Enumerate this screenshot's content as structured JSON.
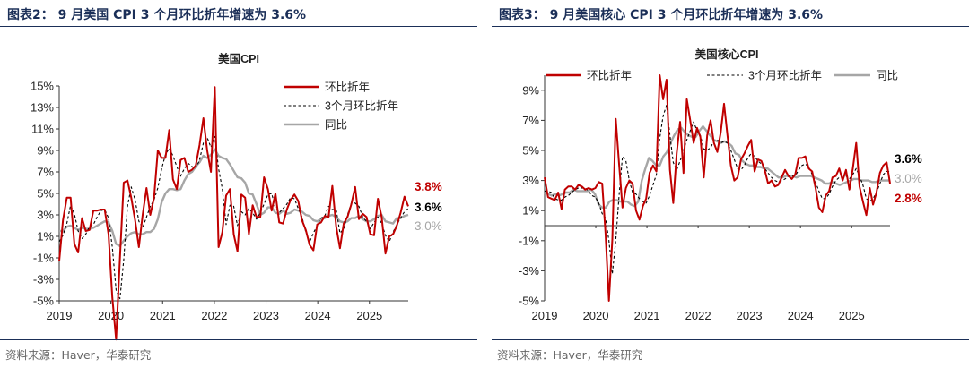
{
  "panels": [
    {
      "figure_title": "图表2： 9 月美国 CPI 3 个月环比折年增速为 3.6%",
      "source": "资料来源：Haver，华泰研究"
    },
    {
      "figure_title": "图表3： 9 月美国核心 CPI 3 个月环比折年增速为 3.6%",
      "source": "资料来源：Haver，华泰研究"
    }
  ],
  "colors": {
    "mom": "#c00000",
    "three_month": "#000000",
    "yoy": "#a6a6a6",
    "title": "#1b2f58"
  },
  "chart_data": [
    {
      "type": "line",
      "title": "美国CPI",
      "xlabel": "",
      "ylabel": "",
      "x_tick_labels": [
        "2019",
        "2020",
        "2021",
        "2022",
        "2023",
        "2024",
        "2025"
      ],
      "x_range": [
        2019.0,
        2025.75
      ],
      "ylim": [
        -5,
        15
      ],
      "y_tick_values": [
        -5,
        -3,
        -1,
        1,
        3,
        5,
        7,
        9,
        11,
        13,
        15
      ],
      "y_tick_labels": [
        "-5%",
        "-3%",
        "-1%",
        "1%",
        "3%",
        "5%",
        "7%",
        "9%",
        "11%",
        "13%",
        "15%"
      ],
      "legend": [
        "环比折年",
        "3个月环比折年",
        "同比"
      ],
      "legend_position": "top-right",
      "end_labels": [
        {
          "text": "3.8%",
          "series": "环比折年",
          "value": 3.8
        },
        {
          "text": "3.6%",
          "series": "3个月环比折年",
          "value": 3.6
        },
        {
          "text": "3.0%",
          "series": "同比",
          "value": 3.0
        }
      ],
      "series": [
        {
          "name": "环比折年",
          "style": "solid",
          "values": [
            -1.3,
            2.5,
            4.6,
            4.6,
            0.3,
            -0.5,
            2.7,
            1.5,
            1.6,
            3.4,
            3.4,
            3.5,
            3.5,
            1.2,
            -4.7,
            -8.6,
            -1.0,
            6.0,
            6.2,
            4.6,
            2.5,
            0.0,
            3.0,
            5.5,
            3.0,
            4.6,
            9.0,
            8.3,
            8.3,
            10.9,
            6.3,
            5.4,
            8.1,
            8.3,
            7.0,
            7.2,
            7.6,
            9.5,
            12.0,
            9.0,
            7.0,
            14.9,
            0.0,
            1.4,
            4.8,
            5.4,
            1.2,
            -0.4,
            4.9,
            4.6,
            1.2,
            3.9,
            2.8,
            2.8,
            6.5,
            5.4,
            3.4,
            5.0,
            2.3,
            2.2,
            3.5,
            4.4,
            4.9,
            4.3,
            2.5,
            1.6,
            0.2,
            -0.3,
            2.1,
            2.3,
            2.9,
            2.8,
            5.7,
            1.9,
            -0.1,
            2.2,
            2.8,
            4.0,
            5.6,
            2.6,
            3.1,
            2.8,
            1.2,
            1.1,
            4.5,
            2.8,
            -0.6,
            1.0,
            1.2,
            2.0,
            3.2,
            4.7,
            3.8
          ]
        },
        {
          "name": "3个月环比折年",
          "style": "dashed",
          "values": [
            0.5,
            1.1,
            2.2,
            3.9,
            3.1,
            1.5,
            0.8,
            1.2,
            1.9,
            2.1,
            2.8,
            3.4,
            3.5,
            2.7,
            0.0,
            -4.0,
            -4.8,
            -1.2,
            3.8,
            5.6,
            4.4,
            2.4,
            1.8,
            2.8,
            3.8,
            4.4,
            5.5,
            7.3,
            8.6,
            9.2,
            8.5,
            7.5,
            6.6,
            7.3,
            7.8,
            7.5,
            7.3,
            8.1,
            9.7,
            10.2,
            9.3,
            10.3,
            7.3,
            5.4,
            2.1,
            3.9,
            3.8,
            2.0,
            3.3,
            3.0,
            3.6,
            3.2,
            2.6,
            3.2,
            4.0,
            4.9,
            5.0,
            3.6,
            3.2,
            3.6,
            4.0,
            4.6,
            4.5,
            3.6,
            2.8,
            1.4,
            0.5,
            1.3,
            2.0,
            2.7,
            2.9,
            3.8,
            3.5,
            3.5,
            1.3,
            1.7,
            3.0,
            4.1,
            4.1,
            3.8,
            2.8,
            2.4,
            1.7,
            2.3,
            2.8,
            2.2,
            1.1,
            0.5,
            1.4,
            2.1,
            2.7,
            3.3,
            3.6
          ]
        },
        {
          "name": "同比",
          "style": "solid",
          "values": [
            1.5,
            1.5,
            1.9,
            2.0,
            1.8,
            1.6,
            1.8,
            1.7,
            1.7,
            1.8,
            2.0,
            2.2,
            2.4,
            2.3,
            1.5,
            0.3,
            0.1,
            0.6,
            1.0,
            1.3,
            1.4,
            1.2,
            1.2,
            1.4,
            1.4,
            1.7,
            2.6,
            4.2,
            5.0,
            5.4,
            5.4,
            5.3,
            5.4,
            6.2,
            6.8,
            7.0,
            7.5,
            7.9,
            8.5,
            8.3,
            8.6,
            9.1,
            8.5,
            8.3,
            8.2,
            7.7,
            7.1,
            6.5,
            6.4,
            6.0,
            5.0,
            4.9,
            4.0,
            3.0,
            3.2,
            3.7,
            3.7,
            3.2,
            3.1,
            3.4,
            3.1,
            3.2,
            3.5,
            3.4,
            3.3,
            3.0,
            2.9,
            2.5,
            2.4,
            2.6,
            2.7,
            2.9,
            3.0,
            2.8,
            2.4,
            2.3,
            2.4,
            2.7,
            2.7,
            2.9,
            2.6,
            2.4,
            2.4,
            2.6,
            2.9,
            3.0,
            2.4,
            2.3,
            2.2,
            2.7,
            2.7,
            2.9,
            3.0
          ]
        }
      ]
    },
    {
      "type": "line",
      "title": "美国核心CPI",
      "xlabel": "",
      "ylabel": "",
      "x_tick_labels": [
        "2019",
        "2020",
        "2021",
        "2022",
        "2023",
        "2024",
        "2025"
      ],
      "x_range": [
        2019.0,
        2025.75
      ],
      "ylim": [
        -5,
        10
      ],
      "y_tick_values": [
        -5,
        -3,
        -1,
        1,
        3,
        5,
        7,
        9
      ],
      "y_tick_labels": [
        "-5%",
        "-3%",
        "-1%",
        "1%",
        "3%",
        "5%",
        "7%",
        "9%"
      ],
      "legend": [
        "环比折年",
        "3个月环比折年",
        "同比"
      ],
      "legend_position": "top",
      "end_labels": [
        {
          "text": "3.6%",
          "series": "3个月环比折年",
          "value": 3.6
        },
        {
          "text": "3.0%",
          "series": "同比",
          "value": 3.0
        },
        {
          "text": "2.8%",
          "series": "环比折年",
          "value": 2.8
        }
      ],
      "series": [
        {
          "name": "环比折年",
          "style": "solid",
          "values": [
            3.2,
            1.9,
            1.8,
            1.7,
            2.2,
            1.1,
            2.4,
            2.6,
            2.6,
            2.4,
            2.7,
            2.6,
            2.4,
            2.5,
            2.4,
            2.5,
            2.9,
            2.8,
            -0.5,
            -5.0,
            -0.9,
            7.1,
            4.1,
            1.2,
            2.5,
            3.0,
            2.8,
            1.0,
            0.4,
            1.3,
            1.8,
            3.5,
            4.0,
            3.6,
            10.0,
            8.4,
            9.7,
            3.7,
            1.5,
            4.8,
            6.9,
            3.5,
            8.4,
            7.0,
            5.5,
            6.5,
            5.9,
            3.2,
            6.0,
            7.0,
            5.5,
            4.9,
            6.2,
            8.1,
            6.0,
            4.0,
            3.0,
            3.2,
            4.4,
            4.8,
            5.3,
            5.7,
            3.6,
            4.4,
            4.3,
            3.7,
            2.8,
            3.0,
            2.6,
            2.7,
            3.2,
            3.7,
            3.3,
            3.1,
            3.4,
            4.5,
            4.5,
            4.6,
            3.8,
            3.6,
            2.5,
            1.2,
            0.9,
            2.0,
            2.3,
            3.2,
            3.3,
            3.8,
            3.0,
            3.7,
            2.4,
            3.8,
            5.5,
            2.6,
            1.6,
            0.7,
            2.5,
            1.4,
            2.2,
            3.5,
            4.0,
            4.2,
            2.8
          ]
        },
        {
          "name": "3个月环比折年",
          "style": "dashed",
          "values": [
            2.3,
            2.3,
            2.2,
            1.8,
            1.7,
            1.7,
            1.9,
            2.0,
            2.2,
            2.4,
            2.5,
            2.5,
            2.5,
            2.3,
            2.0,
            1.9,
            1.5,
            0.8,
            0.5,
            -1.0,
            -3.2,
            -1.0,
            2.0,
            4.6,
            4.3,
            3.0,
            2.2,
            2.1,
            1.8,
            1.6,
            1.5,
            2.0,
            2.7,
            3.4,
            5.8,
            7.3,
            8.0,
            6.0,
            4.2,
            3.7,
            4.3,
            5.0,
            5.7,
            6.3,
            6.9,
            6.3,
            6.0,
            5.1,
            5.0,
            5.2,
            5.6,
            5.7,
            5.5,
            5.6,
            5.5,
            5.0,
            4.4,
            3.8,
            3.7,
            4.0,
            4.5,
            4.8,
            4.6,
            4.3,
            4.1,
            3.8,
            3.5,
            3.2,
            3.0,
            2.9,
            3.0,
            3.1,
            3.3,
            3.3,
            3.3,
            3.7,
            4.0,
            4.1,
            3.9,
            3.4,
            2.9,
            2.3,
            1.8,
            1.8,
            2.1,
            2.6,
            3.0,
            3.2,
            3.2,
            3.3,
            3.1,
            3.4,
            3.8,
            3.3,
            2.7,
            1.8,
            1.6,
            1.8,
            2.2,
            2.8,
            3.4,
            3.6,
            3.6
          ]
        },
        {
          "name": "同比",
          "style": "solid",
          "values": [
            2.2,
            2.1,
            2.0,
            2.1,
            2.0,
            2.1,
            2.2,
            2.2,
            2.4,
            2.3,
            2.3,
            2.3,
            2.3,
            2.4,
            2.1,
            1.4,
            1.2,
            1.2,
            1.6,
            1.7,
            1.7,
            1.6,
            1.6,
            1.6,
            1.4,
            1.3,
            1.6,
            3.0,
            3.8,
            4.5,
            4.3,
            4.0,
            4.0,
            4.6,
            4.9,
            5.5,
            6.0,
            6.4,
            6.5,
            6.2,
            6.0,
            5.9,
            5.9,
            6.3,
            6.6,
            6.3,
            6.0,
            5.7,
            5.6,
            5.5,
            5.6,
            5.5,
            5.3,
            4.8,
            4.7,
            4.3,
            4.1,
            4.0,
            4.0,
            3.9,
            3.9,
            3.8,
            3.8,
            3.6,
            3.4,
            3.2,
            3.2,
            3.3,
            3.3,
            3.3,
            3.2,
            3.3,
            3.3,
            3.3,
            3.3,
            3.2,
            3.1,
            3.0,
            2.8,
            2.8,
            2.9,
            2.8,
            2.7,
            2.8,
            2.9,
            3.0,
            3.1,
            3.1,
            3.0,
            3.0,
            3.0,
            2.9,
            2.9,
            3.0,
            3.0,
            3.0,
            3.0
          ]
        }
      ]
    }
  ]
}
